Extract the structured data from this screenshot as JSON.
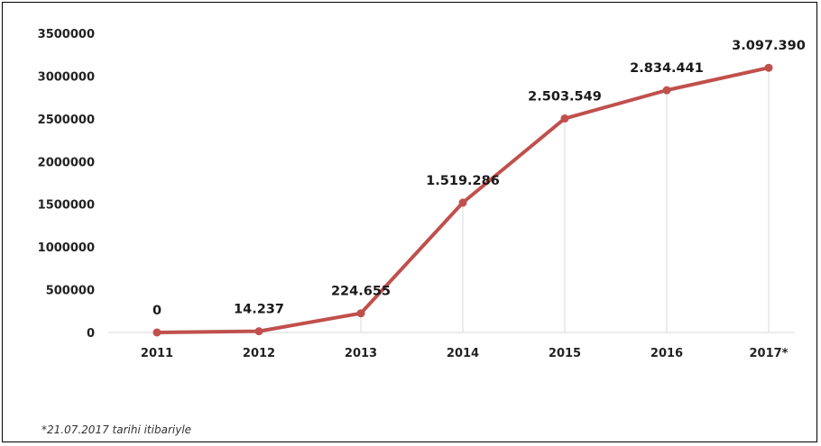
{
  "chart_data": {
    "type": "line",
    "categories": [
      "2011",
      "2012",
      "2013",
      "2014",
      "2015",
      "2016",
      "2017*"
    ],
    "series": [
      {
        "values": [
          0,
          14237,
          224655,
          1519286,
          2503549,
          2834441,
          3097390
        ],
        "data_labels": [
          "0",
          "14.237",
          "224.655",
          "1.519.286",
          "2.503.549",
          "2.834.441",
          "3.097.390"
        ]
      }
    ],
    "yticks": [
      "0",
      "500000",
      "1000000",
      "1500000",
      "2000000",
      "2500000",
      "3000000",
      "3500000"
    ],
    "ylim": [
      0,
      3500000
    ],
    "title": "",
    "xlabel": "",
    "ylabel": "",
    "grid": "vertical lines at data points",
    "legend": "none",
    "colors": {
      "line": "#c0504d",
      "grid": "#d9d9d9"
    }
  },
  "footnote": "*21.07.2017 tarihi itibariyle"
}
